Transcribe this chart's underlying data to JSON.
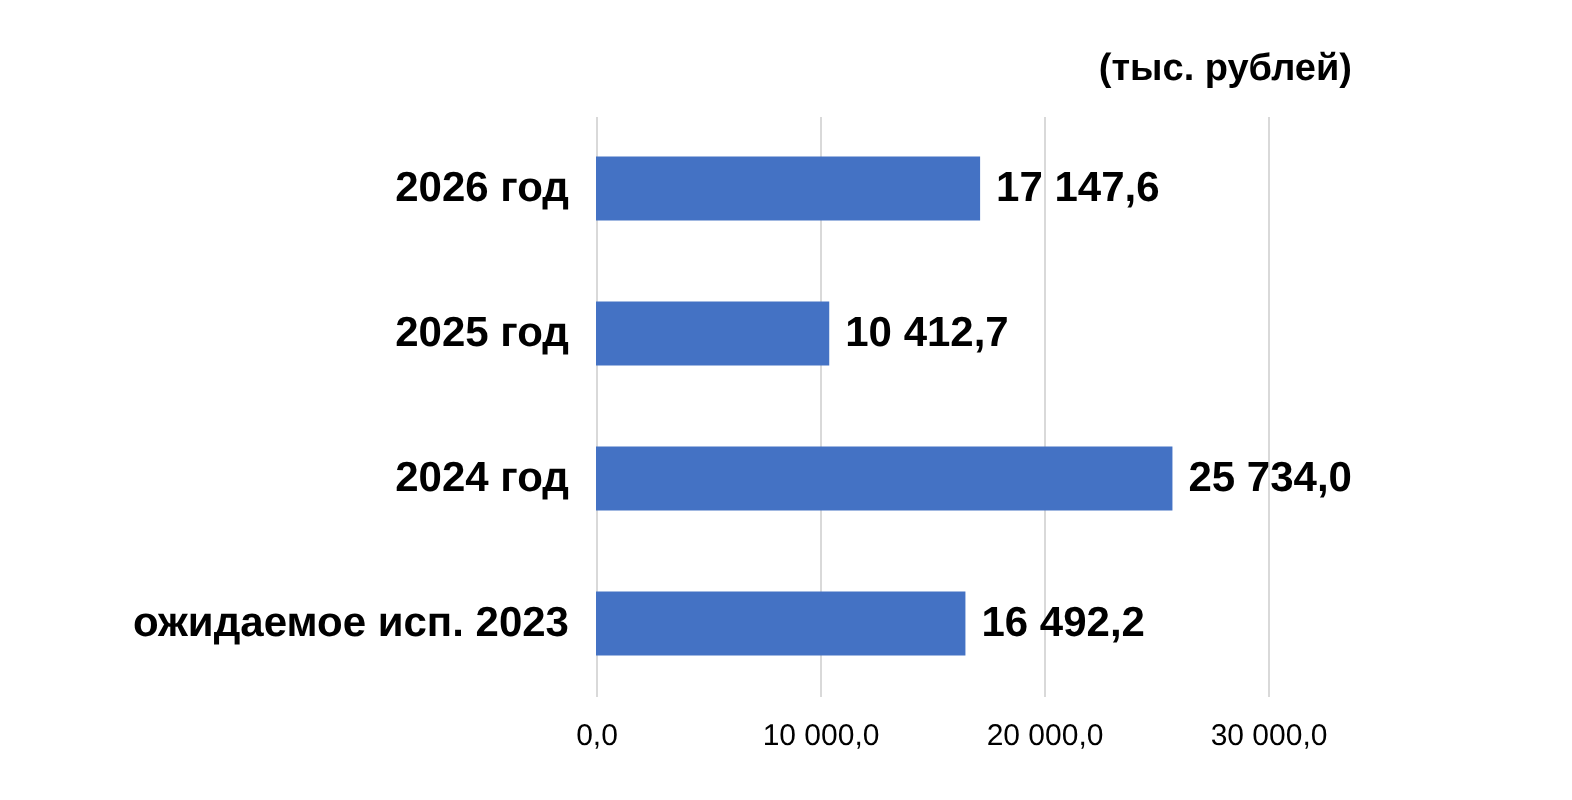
{
  "chart_data": {
    "type": "bar",
    "orientation": "horizontal",
    "title": "(тыс. рублей)",
    "categories": [
      "2026 год",
      "2025 год",
      "2024 год",
      "ожидаемое исп. 2023"
    ],
    "values": [
      17147.6,
      10412.7,
      25734.0,
      16492.2
    ],
    "value_labels": [
      "17 147,6",
      "10 412,7",
      "25 734,0",
      "16 492,2"
    ],
    "color": "#4472c4",
    "xlim": [
      0,
      30000
    ],
    "xticks": [
      {
        "value": 0,
        "label": "0,0"
      },
      {
        "value": 10000,
        "label": "10 000,0"
      },
      {
        "value": 20000,
        "label": "20 000,0"
      },
      {
        "value": 30000,
        "label": "30 000,0"
      }
    ],
    "grid": "x"
  }
}
